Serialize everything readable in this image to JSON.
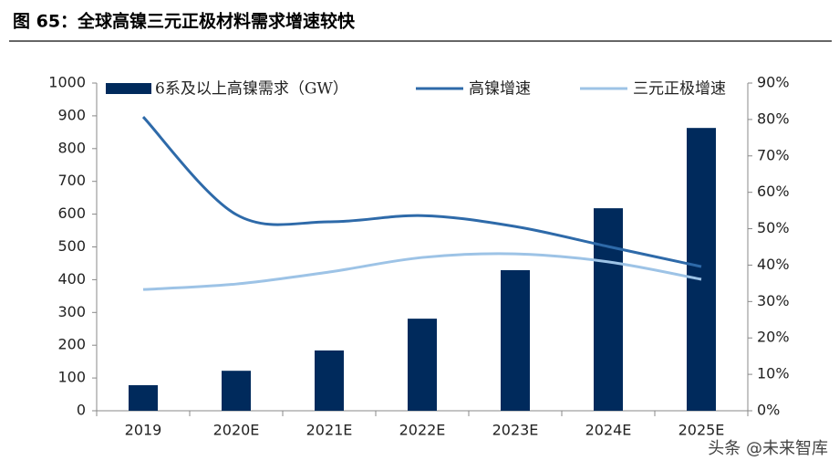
{
  "chart_data": {
    "type": "bar",
    "title": "图 65：全球高镍三元正极材料需求增速较快",
    "watermark": "头条 @未来智库",
    "categories": [
      "2019",
      "2020E",
      "2021E",
      "2022E",
      "2023E",
      "2024E",
      "2025E"
    ],
    "series": [
      {
        "name": "6系及以上高镍需求（GW）",
        "type": "bar",
        "color": "#002a5c",
        "values": [
          78,
          122,
          184,
          281,
          429,
          618,
          863
        ]
      },
      {
        "name": "高镍增速",
        "type": "line",
        "axis": "y2",
        "color": "#2e6aa9",
        "values": [
          80.7,
          53.9,
          51.9,
          53.6,
          50.6,
          45.1,
          39.6
        ]
      },
      {
        "name": "三元正极增速",
        "type": "line",
        "axis": "y2",
        "color": "#9dc3e6",
        "values": [
          33.3,
          34.8,
          38.1,
          42.1,
          43.1,
          40.9,
          36.1
        ]
      }
    ],
    "ylim": [
      0,
      1000
    ],
    "yticks": [
      0,
      100,
      200,
      300,
      400,
      500,
      600,
      700,
      800,
      900,
      1000
    ],
    "y2lim": [
      0,
      90
    ],
    "y2ticks": [
      {
        "value": 0,
        "label": "0%"
      },
      {
        "value": 10,
        "label": "10%"
      },
      {
        "value": 20,
        "label": "20%"
      },
      {
        "value": 30,
        "label": "30%"
      },
      {
        "value": 40,
        "label": "40%"
      },
      {
        "value": 50,
        "label": "50%"
      },
      {
        "value": 60,
        "label": "60%"
      },
      {
        "value": 70,
        "label": "70%"
      },
      {
        "value": 80,
        "label": "80%"
      },
      {
        "value": 90,
        "label": "90%"
      }
    ],
    "grid": false,
    "legend": "top"
  }
}
